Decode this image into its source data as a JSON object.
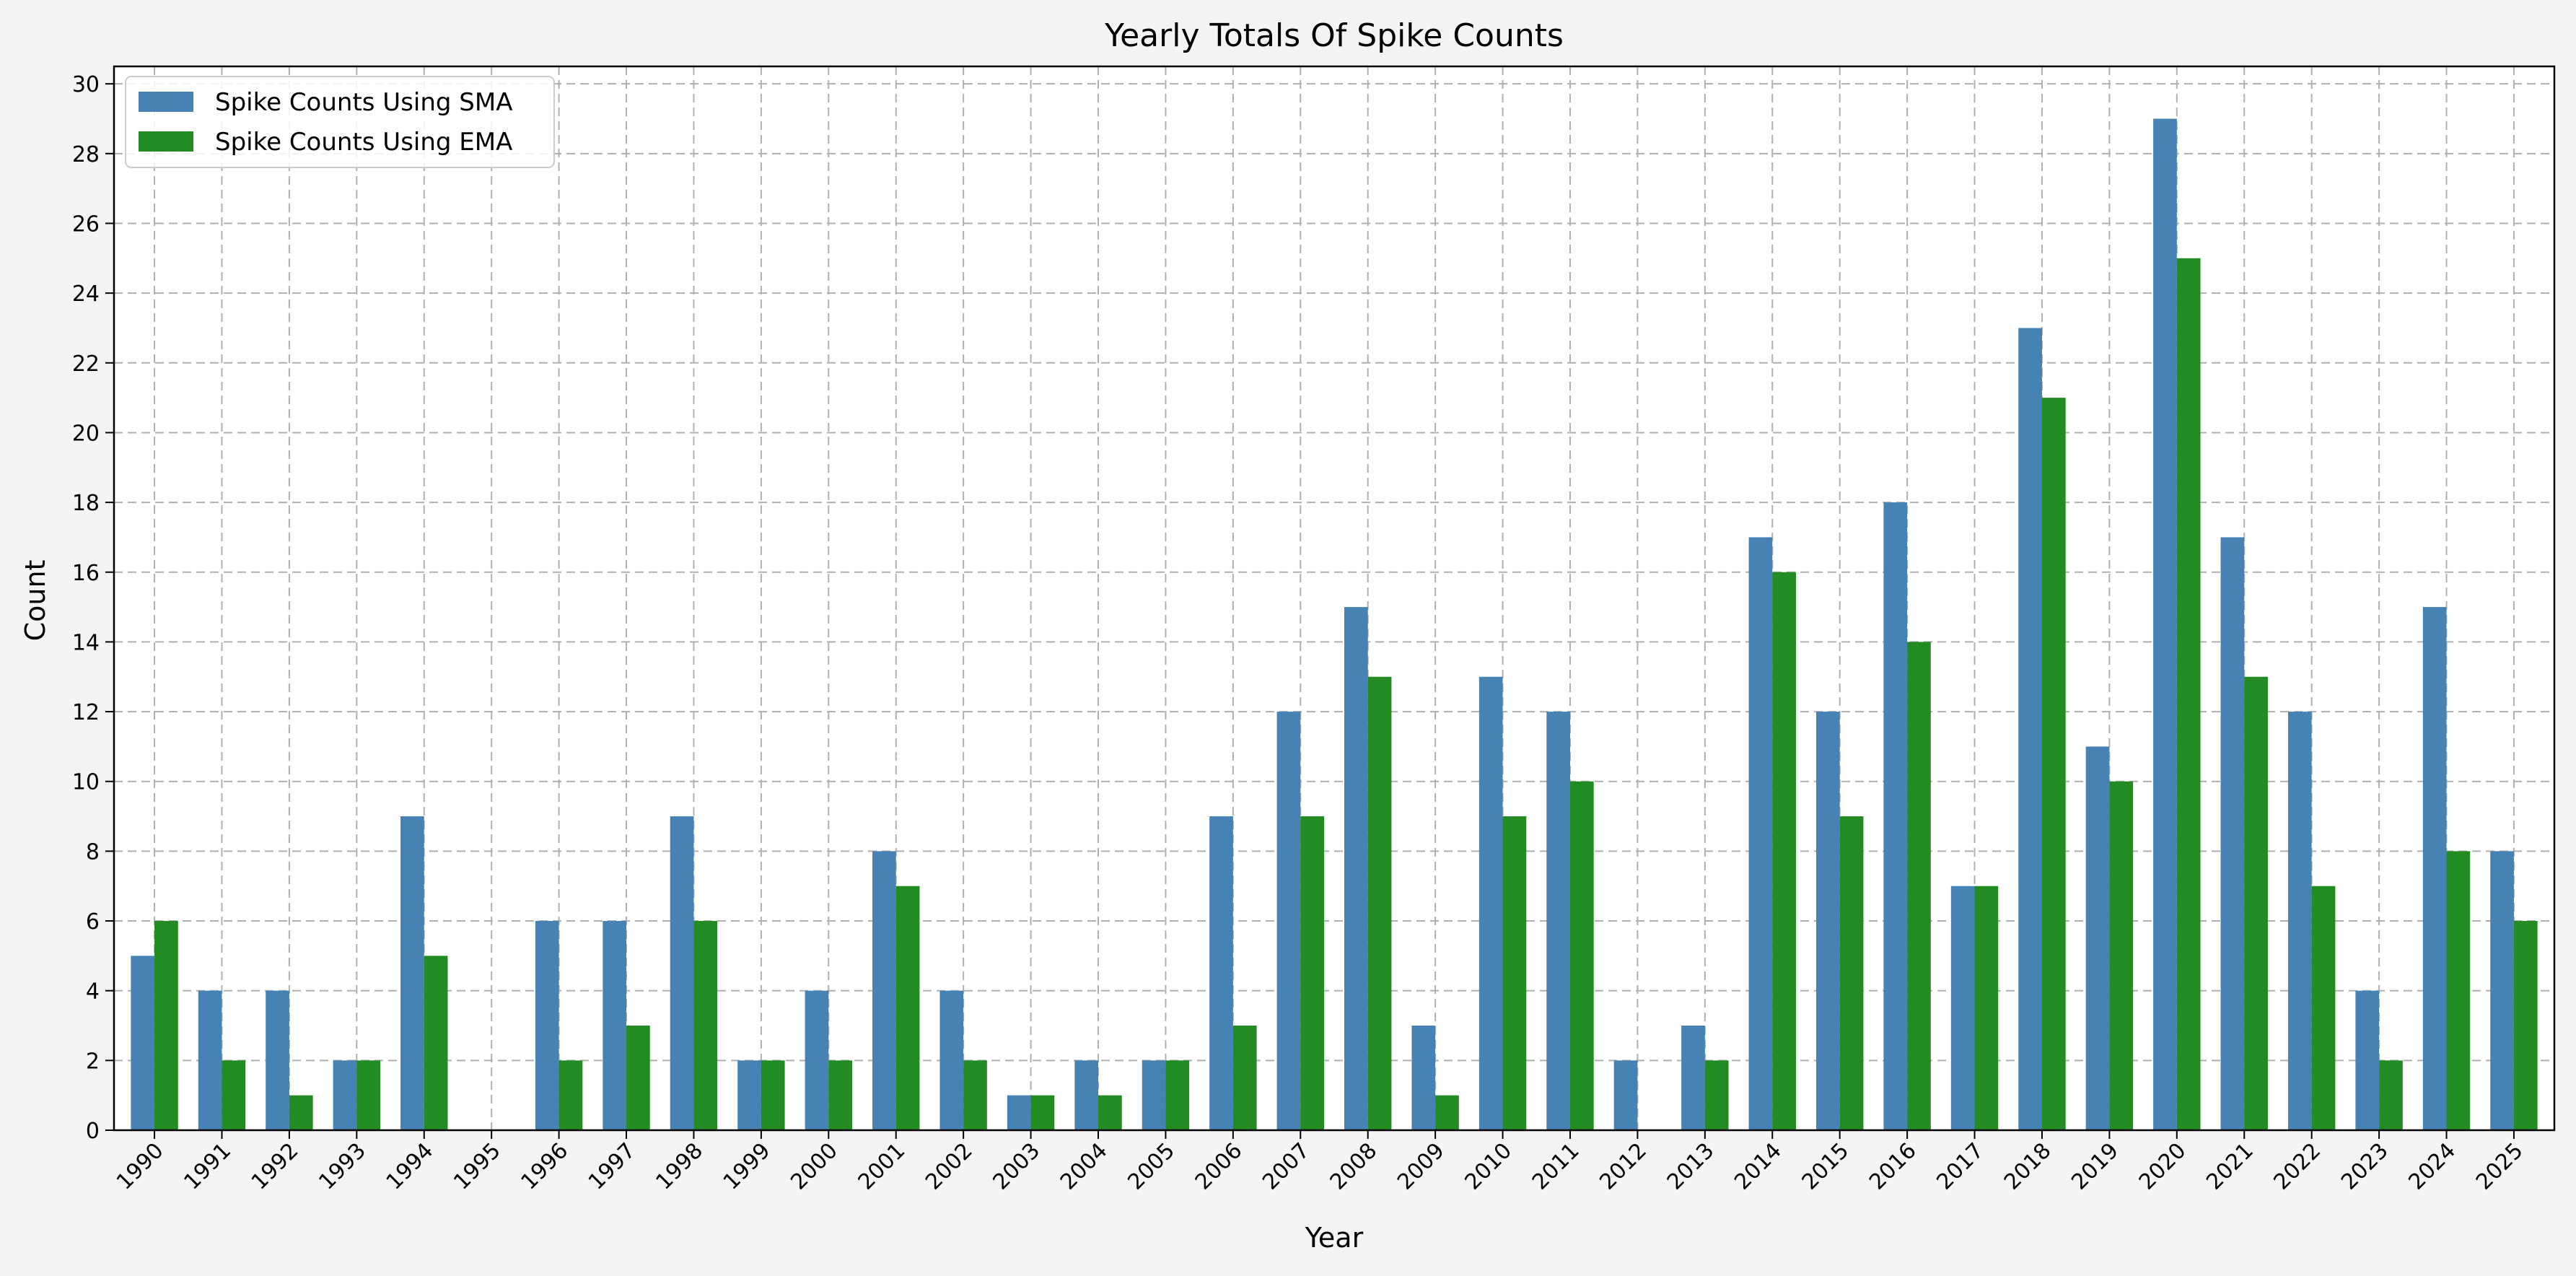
{
  "chart_data": {
    "type": "bar",
    "title": "Yearly Totals Of Spike Counts",
    "xlabel": "Year",
    "ylabel": "Count",
    "ylim": [
      0,
      30.5
    ],
    "yticks": [
      0,
      2,
      4,
      6,
      8,
      10,
      12,
      14,
      16,
      18,
      20,
      22,
      24,
      26,
      28,
      30
    ],
    "grid": true,
    "legend_position": "top-left",
    "categories": [
      "1990",
      "1991",
      "1992",
      "1993",
      "1994",
      "1995",
      "1996",
      "1997",
      "1998",
      "1999",
      "2000",
      "2001",
      "2002",
      "2003",
      "2004",
      "2005",
      "2006",
      "2007",
      "2008",
      "2009",
      "2010",
      "2011",
      "2012",
      "2013",
      "2014",
      "2015",
      "2016",
      "2017",
      "2018",
      "2019",
      "2020",
      "2021",
      "2022",
      "2023",
      "2024",
      "2025"
    ],
    "series": [
      {
        "name": "Spike Counts Using SMA",
        "color": "#4682b4",
        "values": [
          5,
          4,
          4,
          2,
          9,
          0,
          6,
          6,
          9,
          2,
          4,
          8,
          4,
          1,
          2,
          2,
          9,
          12,
          15,
          3,
          13,
          12,
          2,
          3,
          17,
          12,
          18,
          7,
          23,
          11,
          29,
          17,
          12,
          4,
          15,
          8
        ]
      },
      {
        "name": "Spike Counts Using EMA",
        "color": "#228b22",
        "values": [
          6,
          2,
          1,
          2,
          5,
          0,
          2,
          3,
          6,
          2,
          2,
          7,
          2,
          1,
          1,
          2,
          3,
          9,
          13,
          1,
          9,
          10,
          0,
          2,
          16,
          9,
          14,
          7,
          21,
          10,
          25,
          13,
          7,
          2,
          8,
          6
        ]
      }
    ]
  }
}
